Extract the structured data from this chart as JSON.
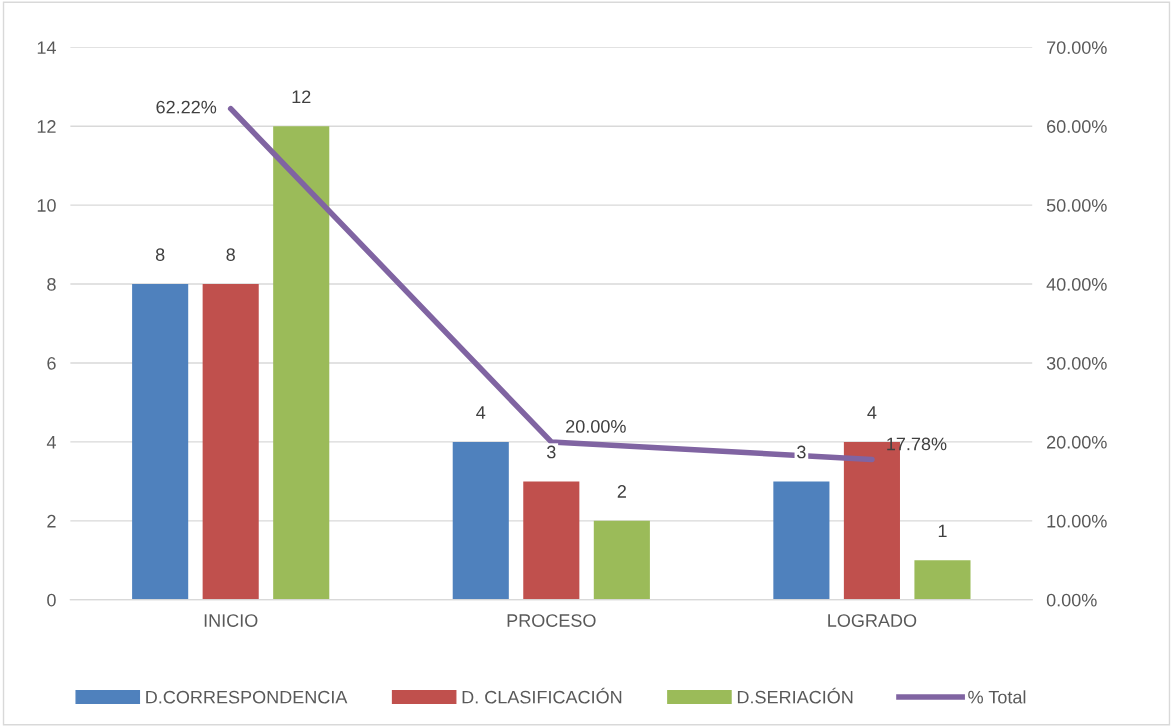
{
  "chart_data": {
    "type": "bar",
    "categories": [
      "INICIO",
      "PROCESO",
      "LOGRADO"
    ],
    "series": [
      {
        "name": "D.CORRESPONDENCIA",
        "color": "#4f81bd",
        "values": [
          8,
          4,
          3
        ]
      },
      {
        "name": "D. CLASIFICACIÓN",
        "color": "#c0504d",
        "values": [
          8,
          3,
          4
        ]
      },
      {
        "name": "D.SERIACIÓN",
        "color": "#9bbb59",
        "values": [
          12,
          2,
          1
        ]
      },
      {
        "name": "% Total",
        "type": "line",
        "axis": "y2",
        "color": "#8064a2",
        "values": [
          62.22,
          20.0,
          17.78
        ],
        "value_labels": [
          "62.22%",
          "20.00%",
          "17.78%"
        ]
      }
    ],
    "ylim": [
      0,
      14
    ],
    "yticks": [
      0,
      2,
      4,
      6,
      8,
      10,
      12,
      14
    ],
    "y2lim": [
      0,
      70
    ],
    "y2ticks": [
      {
        "value": 0,
        "label": "0.00%"
      },
      {
        "value": 10,
        "label": "10.00%"
      },
      {
        "value": 20,
        "label": "20.00%"
      },
      {
        "value": 30,
        "label": "30.00%"
      },
      {
        "value": 40,
        "label": "40.00%"
      },
      {
        "value": 50,
        "label": "50.00%"
      },
      {
        "value": 60,
        "label": "60.00%"
      },
      {
        "value": 70,
        "label": "70.00%"
      }
    ],
    "grid": "y",
    "legend": "bottom",
    "data_labels": true
  }
}
